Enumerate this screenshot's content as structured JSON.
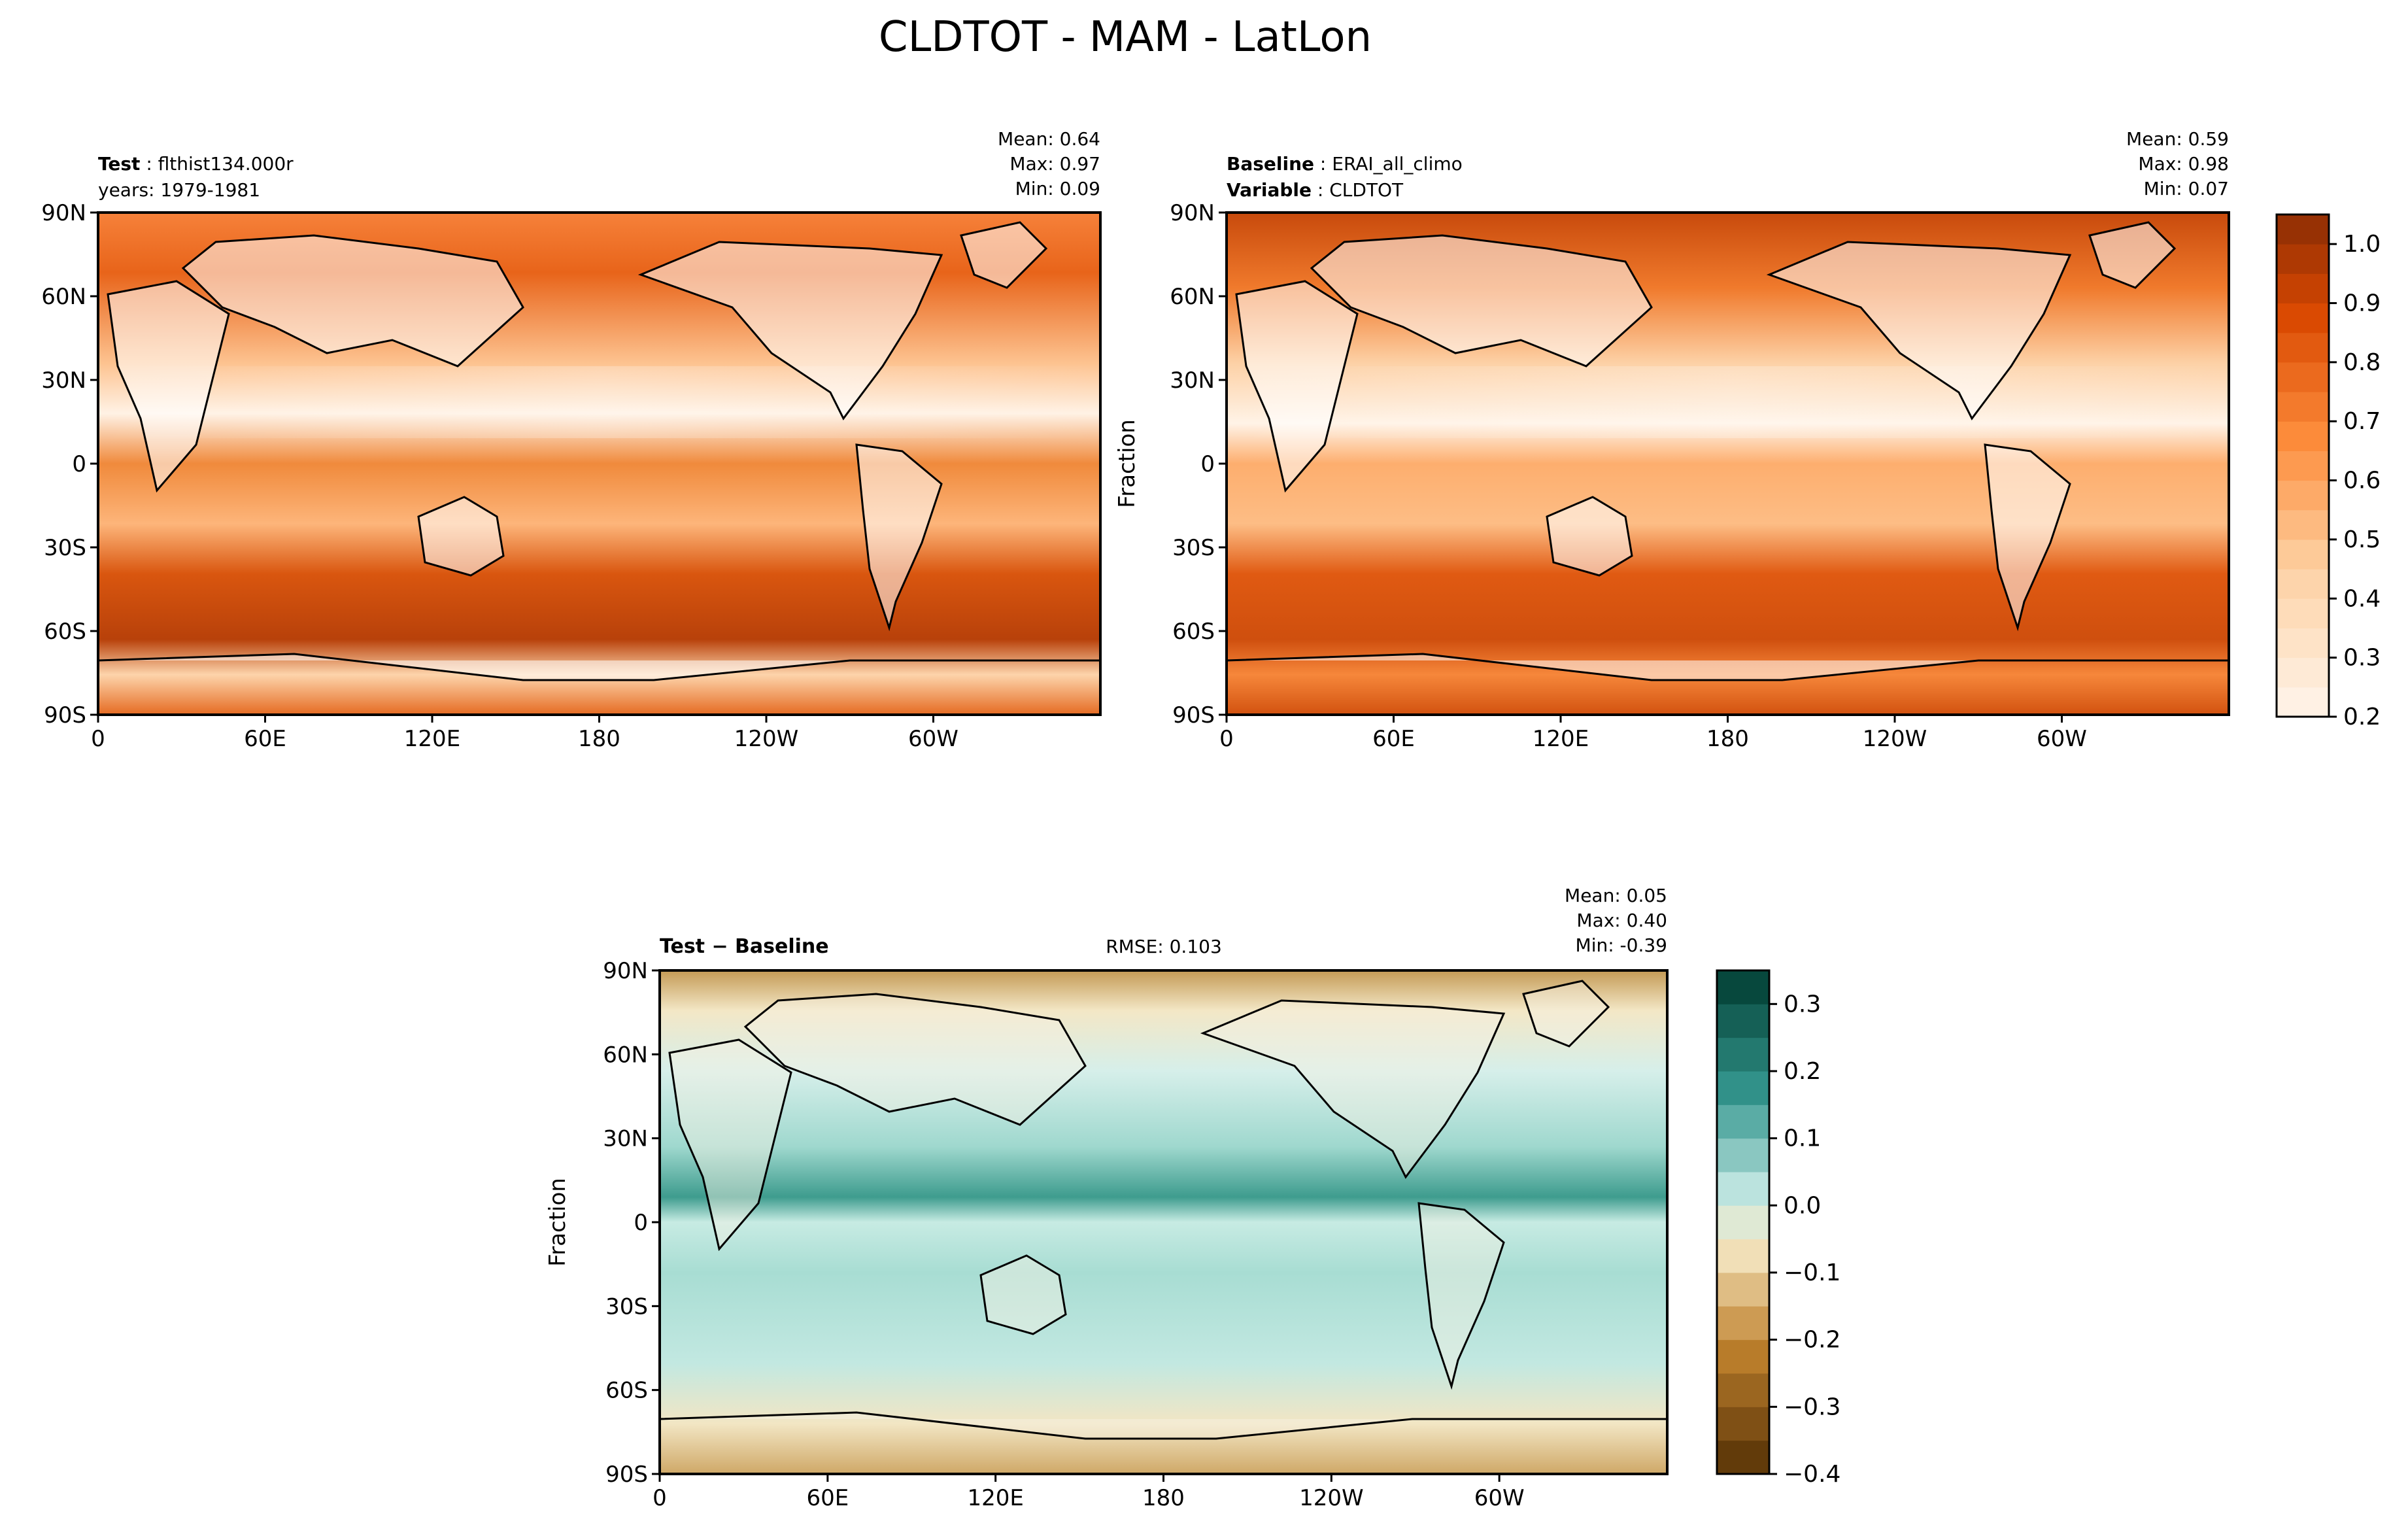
{
  "figure": {
    "title": "CLDTOT - MAM - LatLon"
  },
  "chart_data": [
    {
      "type": "heatmap",
      "panel": "test",
      "header_left": [
        {
          "bold": "Test",
          "text": "flthist134.000r"
        },
        {
          "bold": "",
          "text": "years: 1979-1981"
        }
      ],
      "stats": {
        "Mean": "0.64",
        "Max": "0.97",
        "Min": "0.09"
      },
      "stats_text": [
        "Mean:  0.64",
        "Max:  0.97",
        "Min:  0.09"
      ],
      "xlim": [
        0,
        360
      ],
      "ylim": [
        -90,
        90
      ],
      "x_ticks": [
        "0",
        "60E",
        "120E",
        "180",
        "120W",
        "60W"
      ],
      "y_ticks": [
        "90N",
        "60N",
        "30N",
        "0",
        "30S",
        "60S",
        "90S"
      ],
      "ylabel": "",
      "colormap": "Oranges"
    },
    {
      "type": "heatmap",
      "panel": "baseline",
      "header_left": [
        {
          "bold": "Baseline",
          "text": "ERAI_all_climo"
        },
        {
          "bold": "Variable",
          "text": "CLDTOT"
        }
      ],
      "stats": {
        "Mean": "0.59",
        "Max": "0.98",
        "Min": "0.07"
      },
      "stats_text": [
        "Mean:  0.59",
        "Max:  0.98",
        "Min:  0.07"
      ],
      "xlim": [
        0,
        360
      ],
      "ylim": [
        -90,
        90
      ],
      "x_ticks": [
        "0",
        "60E",
        "120E",
        "180",
        "120W",
        "60W"
      ],
      "y_ticks": [
        "90N",
        "60N",
        "30N",
        "0",
        "30S",
        "60S",
        "90S"
      ],
      "ylabel": "Fraction",
      "colormap": "Oranges",
      "colorbar": {
        "ticks": [
          "1.0",
          "0.9",
          "0.8",
          "0.7",
          "0.6",
          "0.5",
          "0.4",
          "0.3",
          "0.2"
        ],
        "range": [
          0.2,
          1.05
        ],
        "levels": 17
      }
    },
    {
      "type": "heatmap",
      "panel": "difference",
      "header_left": [
        {
          "bold": "Test − Baseline",
          "text": ""
        }
      ],
      "rmse_text": "RMSE: 0.103",
      "stats": {
        "Mean": "0.05",
        "Max": "0.40",
        "Min": "-0.39"
      },
      "stats_text": [
        "Mean:  0.05",
        "Max:  0.40",
        "Min: -0.39"
      ],
      "xlim": [
        0,
        360
      ],
      "ylim": [
        -90,
        90
      ],
      "x_ticks": [
        "0",
        "60E",
        "120E",
        "180",
        "120W",
        "60W"
      ],
      "y_ticks": [
        "90N",
        "60N",
        "30N",
        "0",
        "30S",
        "60S",
        "90S"
      ],
      "ylabel": "Fraction",
      "colormap": "BrBG",
      "colorbar": {
        "ticks": [
          "0.3",
          "0.2",
          "0.1",
          "0.0",
          "−0.1",
          "−0.2",
          "−0.3",
          "−0.4"
        ],
        "range": [
          -0.4,
          0.35
        ],
        "levels": 15
      }
    }
  ]
}
